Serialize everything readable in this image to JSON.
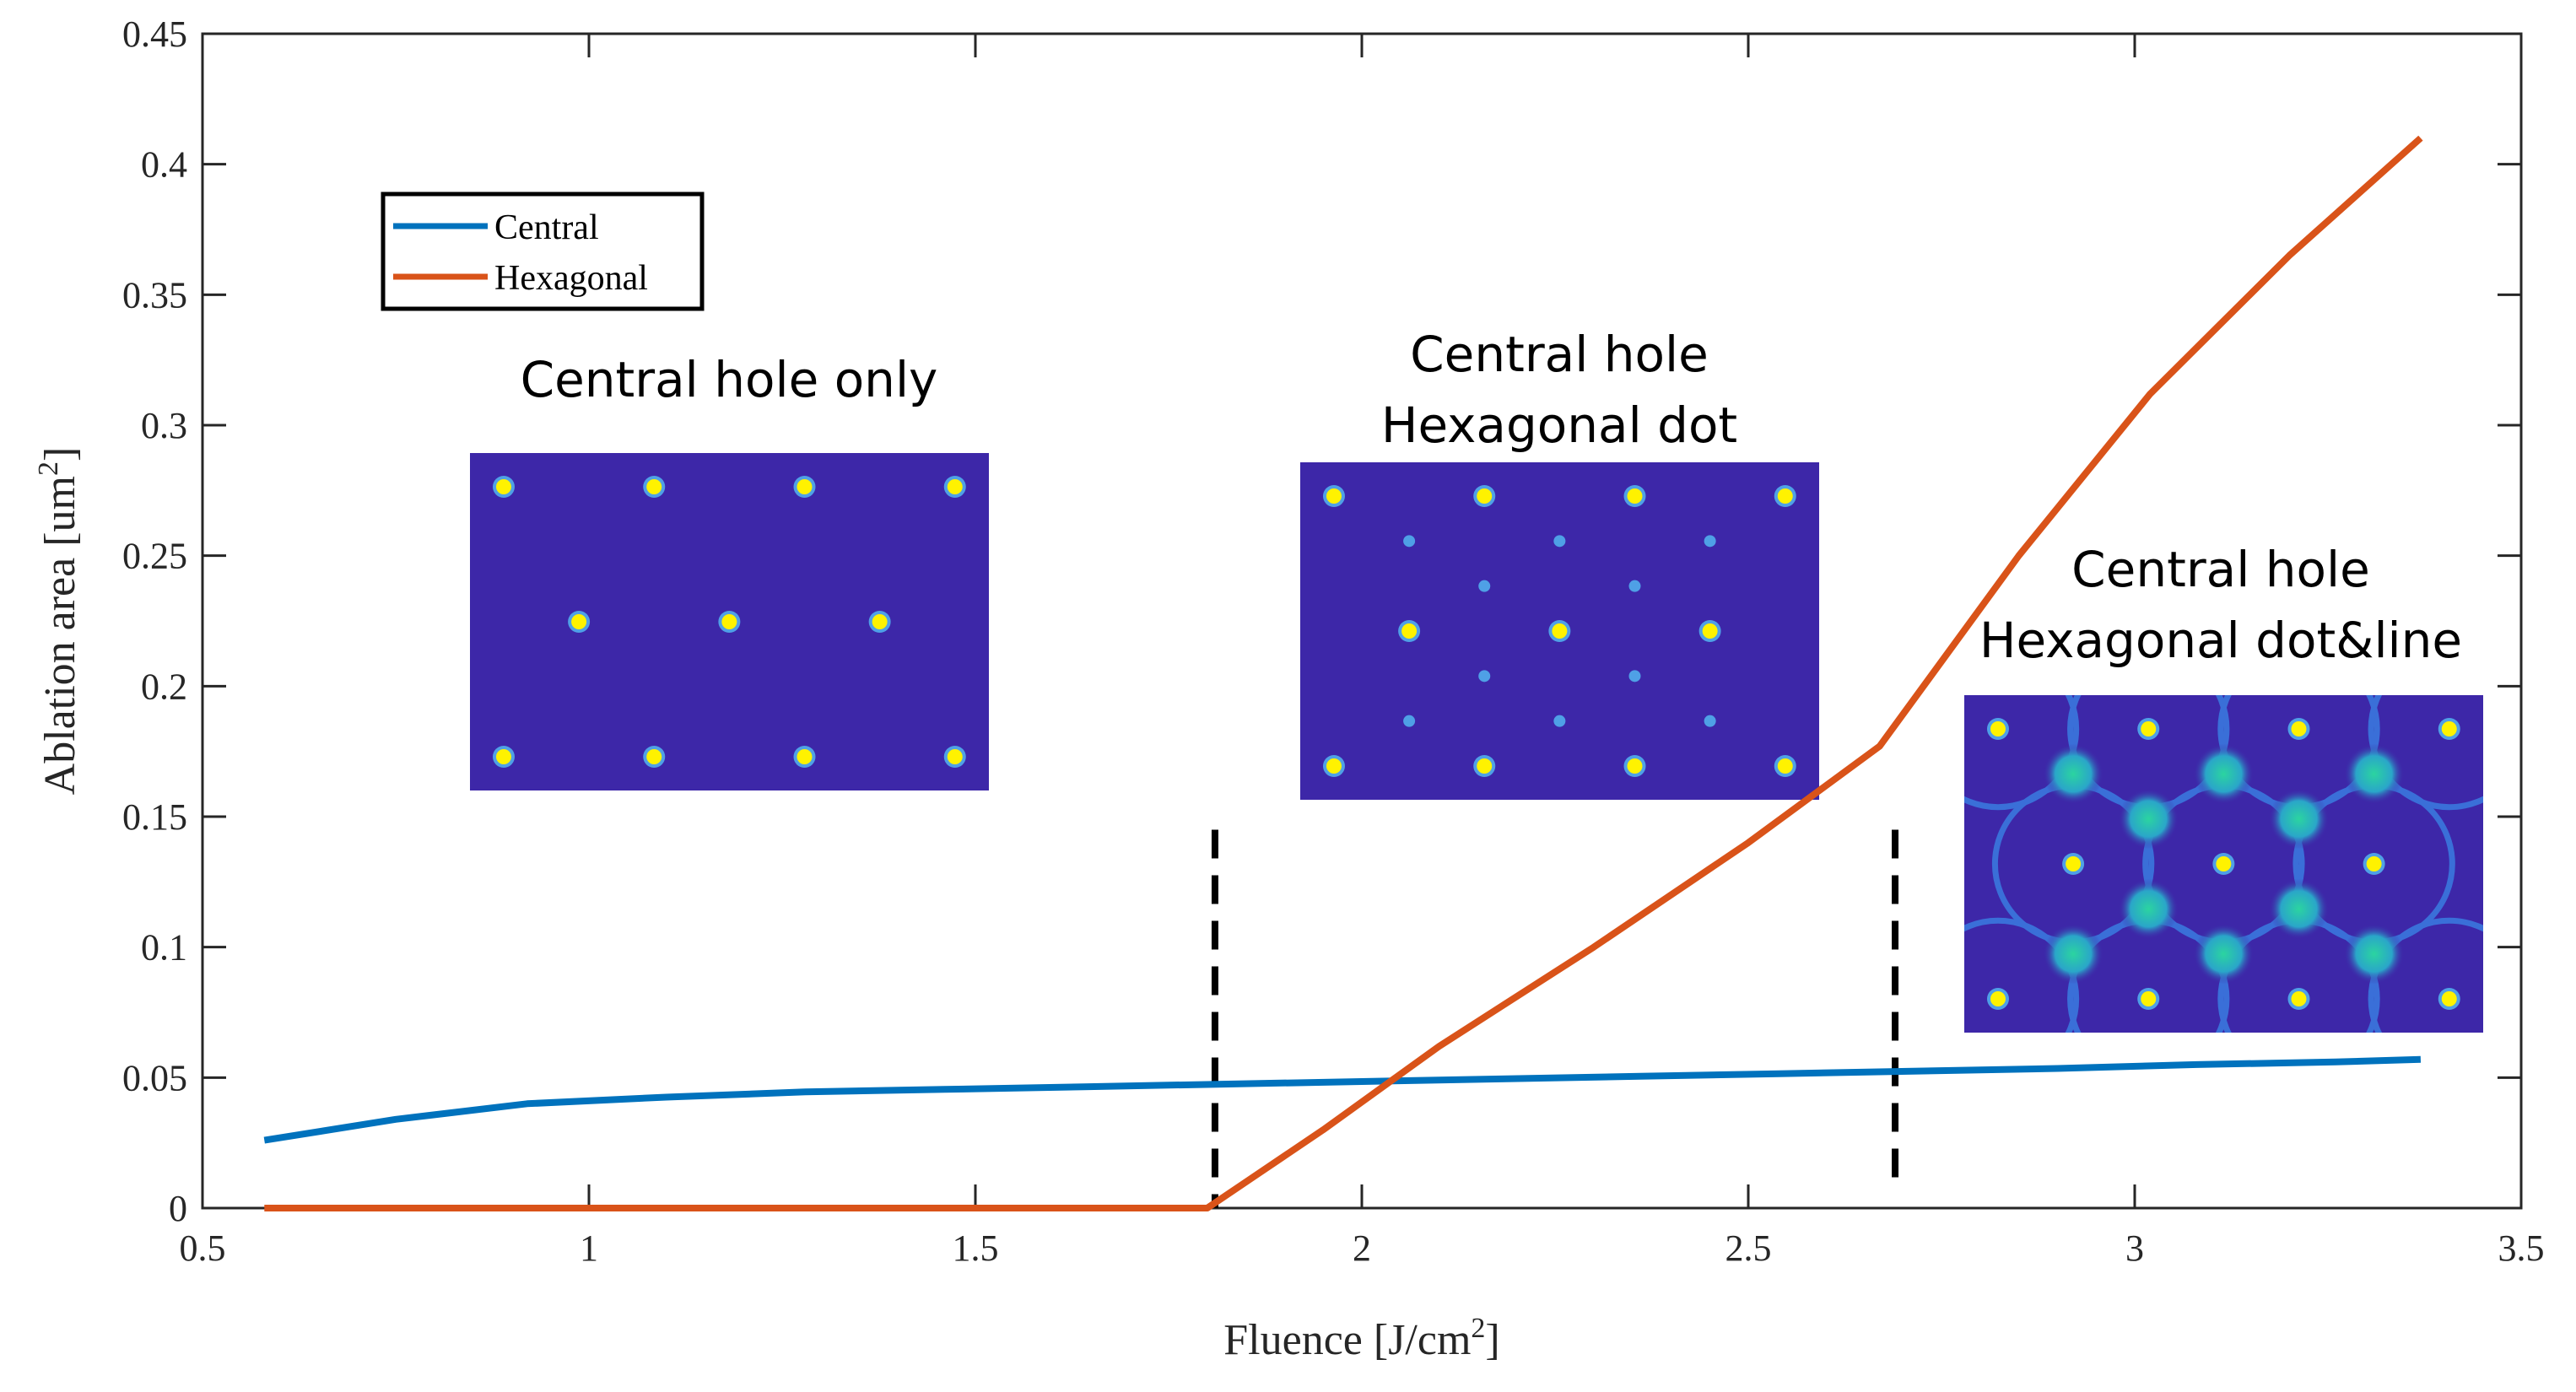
{
  "chart_data": {
    "type": "line",
    "title": "",
    "xlabel": "Fluence [J/cm",
    "xlabel_sup": "2",
    "xlabel_suffix": "]",
    "ylabel": "Ablation area [um",
    "ylabel_sup": "2",
    "ylabel_suffix": "]",
    "xlim": [
      0.5,
      3.5
    ],
    "ylim": [
      0,
      0.45
    ],
    "xticks": [
      "0.5",
      "1",
      "1.5",
      "2",
      "2.5",
      "3",
      "3.5"
    ],
    "yticks": [
      "0",
      "0.05",
      "0.1",
      "0.15",
      "0.2",
      "0.25",
      "0.3",
      "0.35",
      "0.4",
      "0.45"
    ],
    "grid": false,
    "legend_position": "upper-left",
    "series": [
      {
        "name": "Central",
        "color": "#0072BD",
        "x": [
          0.58,
          0.75,
          0.92,
          1.1,
          1.28,
          1.46,
          1.64,
          1.82,
          2.0,
          2.18,
          2.36,
          2.54,
          2.72,
          2.9,
          3.08,
          3.26,
          3.37
        ],
        "y": [
          0.026,
          0.034,
          0.04,
          0.0425,
          0.0445,
          0.0455,
          0.0465,
          0.0475,
          0.0485,
          0.0495,
          0.0505,
          0.0515,
          0.0525,
          0.0535,
          0.055,
          0.056,
          0.057
        ]
      },
      {
        "name": "Hexagonal",
        "color": "#D95319",
        "x": [
          0.58,
          1.0,
          1.4,
          1.8,
          1.95,
          2.1,
          2.3,
          2.5,
          2.67,
          2.85,
          3.02,
          3.2,
          3.37
        ],
        "y": [
          0,
          0,
          0,
          0,
          0.03,
          0.062,
          0.1,
          0.14,
          0.177,
          0.25,
          0.312,
          0.365,
          0.41
        ]
      }
    ],
    "vlines": [
      {
        "x": 1.81,
        "y_range": [
          0,
          0.145
        ],
        "style": "dashed",
        "color": "#000000"
      },
      {
        "x": 2.69,
        "y_range": [
          0.01,
          0.145
        ],
        "style": "dashed",
        "color": "#000000"
      }
    ],
    "annotations": [
      {
        "lines": [
          "Central hole only"
        ]
      },
      {
        "lines": [
          "Central hole",
          "Hexagonal dot"
        ]
      },
      {
        "lines": [
          "Central hole",
          "Hexagonal dot&line"
        ]
      }
    ],
    "inset_colors": {
      "background": "#3D27A8",
      "dot": "#FFF200",
      "ring": "#4FA0E6",
      "glow": "#2BC4A4"
    }
  }
}
